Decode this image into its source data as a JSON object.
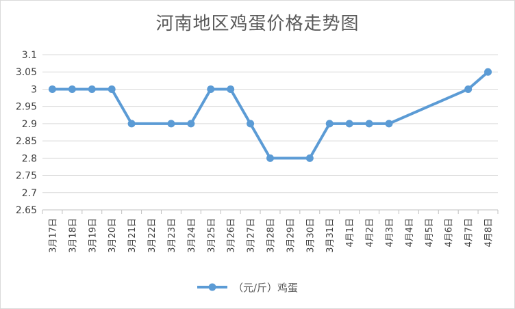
{
  "chart_data": {
    "type": "line",
    "title": "河南地区鸡蛋价格走势图",
    "categories": [
      "3月17日",
      "3月18日",
      "3月19日",
      "3月20日",
      "3月21日",
      "3月22日",
      "3月23日",
      "3月24日",
      "3月25日",
      "3月26日",
      "3月27日",
      "3月28日",
      "3月29日",
      "3月30日",
      "3月31日",
      "4月1日",
      "4月2日",
      "4月3日",
      "4月4日",
      "4月5日",
      "4月6日",
      "4月7日",
      "4月8日"
    ],
    "series": [
      {
        "name": "（元/斤）鸡蛋",
        "color": "#5b9bd5",
        "values": [
          3.0,
          3.0,
          3.0,
          3.0,
          2.9,
          null,
          2.9,
          2.9,
          3.0,
          3.0,
          2.9,
          2.8,
          null,
          2.8,
          2.9,
          2.9,
          2.9,
          2.9,
          null,
          null,
          null,
          3.0,
          3.05
        ]
      }
    ],
    "ylim": [
      2.65,
      3.1
    ],
    "yticks": [
      "2.65",
      "2.7",
      "2.75",
      "2.8",
      "2.85",
      "2.9",
      "2.95",
      "3",
      "3.05",
      "3.1"
    ],
    "grid": true,
    "legend": "bottom",
    "gridline_color": "#d9d9d9"
  }
}
